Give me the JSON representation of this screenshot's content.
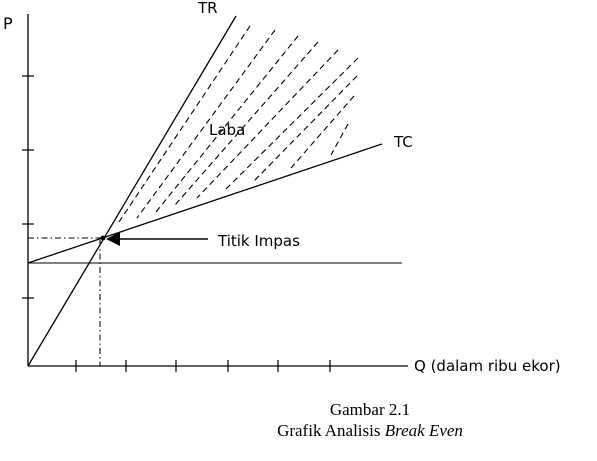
{
  "diagram": {
    "y_axis_label": "P",
    "x_axis_label": "Q (dalam ribu ekor)",
    "tr_label": "TR",
    "tc_label": "TC",
    "profit_label": "Laba",
    "bep_label": "Titik Impas"
  },
  "caption": {
    "line1": "Gambar 2.1",
    "line2_prefix": "Grafik Analisis ",
    "line2_emphasis": "Break Even"
  }
}
